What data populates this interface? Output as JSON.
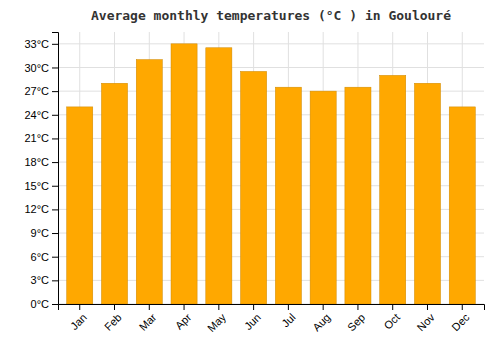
{
  "chart_data": {
    "type": "bar",
    "title": "Average monthly temperatures (°C ) in Goulouré",
    "categories": [
      "Jan",
      "Feb",
      "Mar",
      "Apr",
      "May",
      "Jun",
      "Jul",
      "Aug",
      "Sep",
      "Oct",
      "Nov",
      "Dec"
    ],
    "values": [
      25.0,
      28.0,
      31.0,
      33.0,
      32.5,
      29.5,
      27.5,
      27.0,
      27.5,
      29.0,
      28.0,
      25.0
    ],
    "color": "#FFA800",
    "ylim": [
      0,
      34.5
    ],
    "yticks": [
      {
        "value": 0,
        "label": "0°C"
      },
      {
        "value": 3,
        "label": "3°C"
      },
      {
        "value": 6,
        "label": "6°C"
      },
      {
        "value": 9,
        "label": "9°C"
      },
      {
        "value": 12,
        "label": "12°C"
      },
      {
        "value": 15,
        "label": "15°C"
      },
      {
        "value": 18,
        "label": "18°C"
      },
      {
        "value": 21,
        "label": "21°C"
      },
      {
        "value": 24,
        "label": "24°C"
      },
      {
        "value": 27,
        "label": "27°C"
      },
      {
        "value": 30,
        "label": "30°C"
      },
      {
        "value": 33,
        "label": "33°C"
      }
    ],
    "grid": true
  }
}
